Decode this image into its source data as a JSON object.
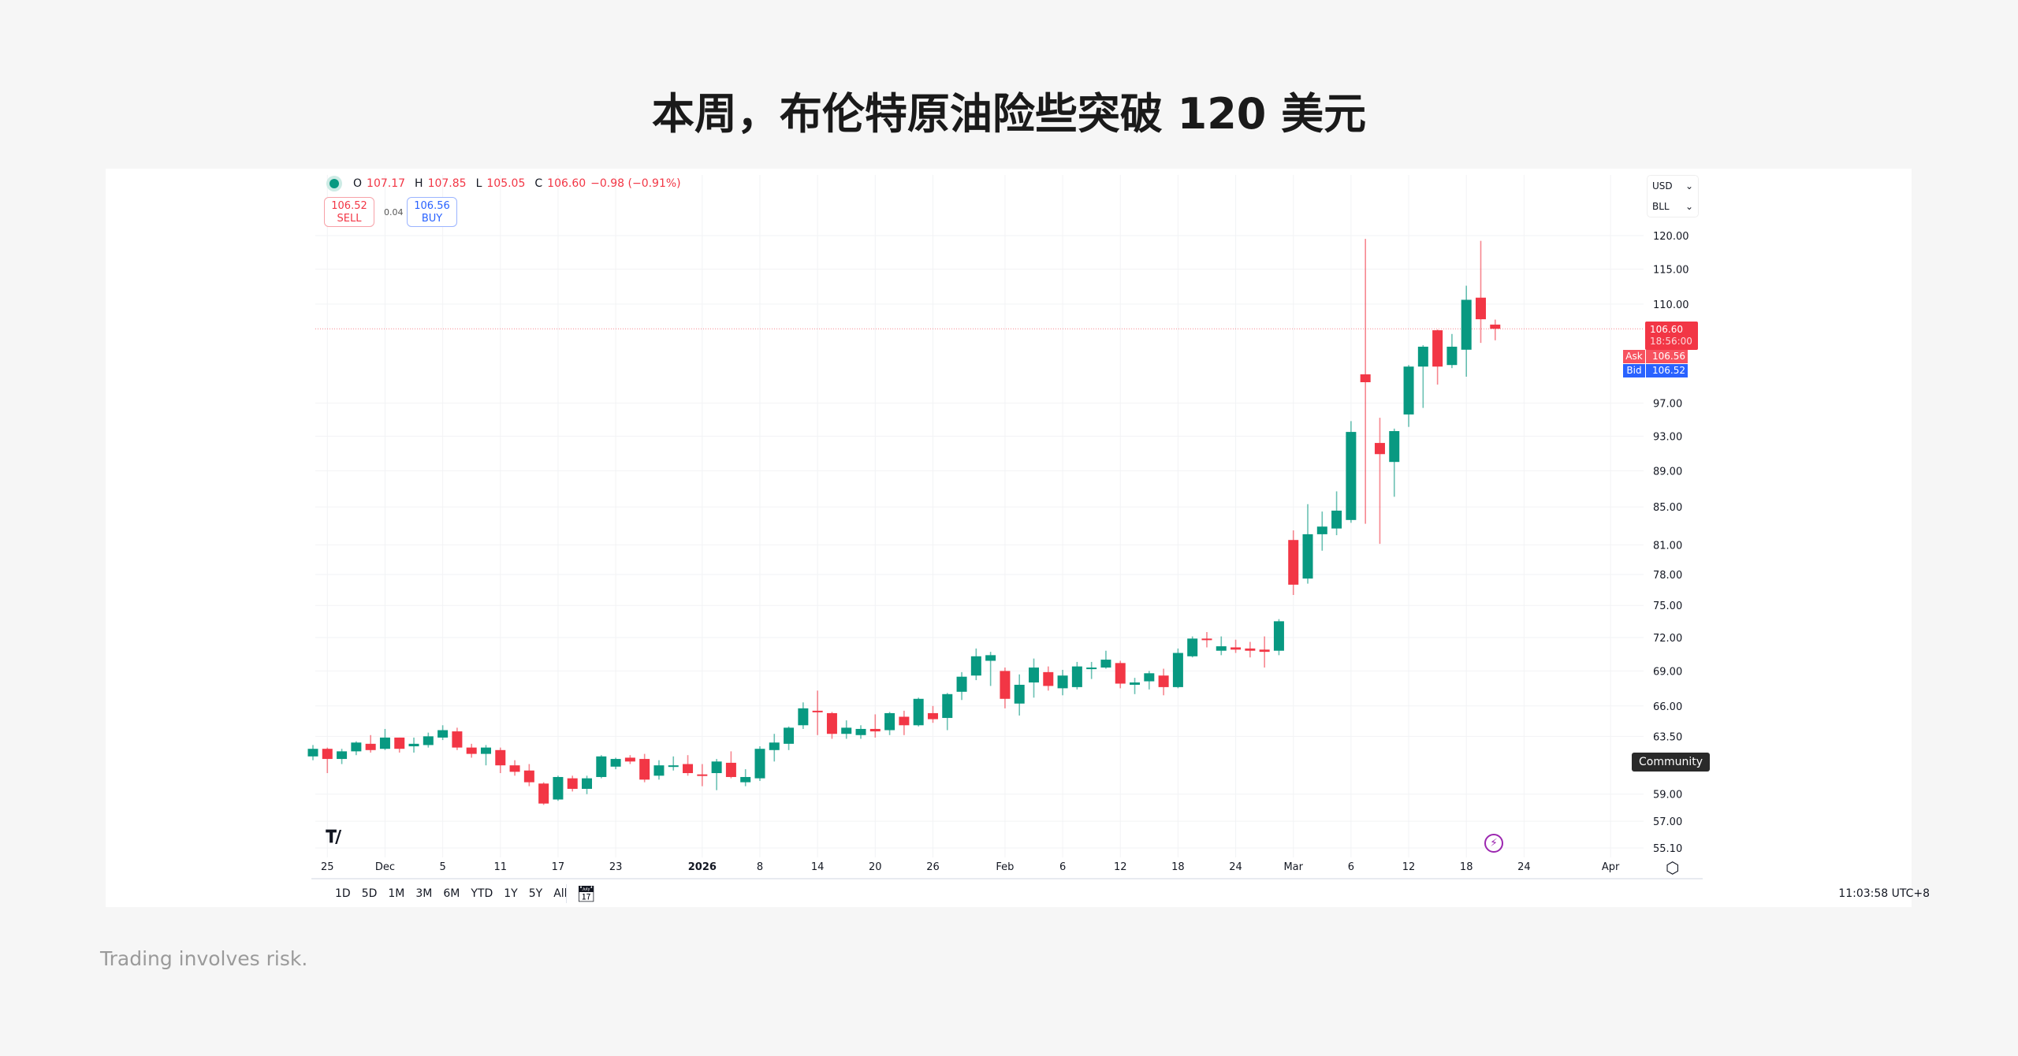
{
  "title": "本周，布伦特原油险些突破 120 美元",
  "footer": "Trading involves risk.",
  "legend": {
    "o_label": "O",
    "o": "107.17",
    "h_label": "H",
    "h": "107.85",
    "l_label": "L",
    "l": "105.05",
    "c_label": "C",
    "c": "106.60",
    "change": "−0.98 (−0.91%)"
  },
  "trade": {
    "sell_price": "106.52",
    "sell_label": "SELL",
    "spread": "0.04",
    "buy_price": "106.56",
    "buy_label": "BUY"
  },
  "units": {
    "currency": "USD",
    "unit": "BLL"
  },
  "price_tags": {
    "last": "106.60",
    "countdown": "18:56:00",
    "ask_label": "Ask",
    "ask": "106.56",
    "bid_label": "Bid",
    "bid": "106.52"
  },
  "tooltip": "Community",
  "timeframes": [
    "1D",
    "5D",
    "1M",
    "3M",
    "6M",
    "YTD",
    "1Y",
    "5Y",
    "All"
  ],
  "clock": "11:03:58 UTC+8",
  "colors": {
    "up": "#089981",
    "down": "#f23645",
    "bid": "#2962ff",
    "event": "#9c27b0"
  },
  "icons": [
    "tradingview-logo-icon",
    "lightning-event-icon",
    "settings-icon",
    "calendar-goto-icon",
    "chevron-down-icon"
  ],
  "chart_data": {
    "type": "candlestick",
    "y_scale": "log",
    "ylim": [
      55.1,
      120
    ],
    "grid": true,
    "y_ticks": [
      "120.00",
      "115.00",
      "110.00",
      "97.00",
      "93.00",
      "89.00",
      "85.00",
      "81.00",
      "78.00",
      "75.00",
      "72.00",
      "69.00",
      "66.00",
      "63.50",
      "59.00",
      "57.00",
      "55.10"
    ],
    "x_ticks": [
      {
        "label": "25",
        "date": "2025-11-25"
      },
      {
        "label": "Dec",
        "date": "2025-12-01"
      },
      {
        "label": "5",
        "date": "2025-12-05"
      },
      {
        "label": "11",
        "date": "2025-12-11"
      },
      {
        "label": "17",
        "date": "2025-12-17"
      },
      {
        "label": "23",
        "date": "2025-12-23"
      },
      {
        "label": "2026",
        "date": "2026-01-02"
      },
      {
        "label": "8",
        "date": "2026-01-08"
      },
      {
        "label": "14",
        "date": "2026-01-14"
      },
      {
        "label": "20",
        "date": "2026-01-20"
      },
      {
        "label": "26",
        "date": "2026-01-26"
      },
      {
        "label": "Feb",
        "date": "2026-02-02"
      },
      {
        "label": "6",
        "date": "2026-02-06"
      },
      {
        "label": "12",
        "date": "2026-02-12"
      },
      {
        "label": "18",
        "date": "2026-02-18"
      },
      {
        "label": "24",
        "date": "2026-02-24"
      },
      {
        "label": "Mar",
        "date": "2026-03-02"
      },
      {
        "label": "6",
        "date": "2026-03-06"
      },
      {
        "label": "12",
        "date": "2026-03-12"
      },
      {
        "label": "18",
        "date": "2026-03-18"
      },
      {
        "label": "24",
        "date": "2026-03-24"
      },
      {
        "label": "Apr",
        "date": "2026-04-01"
      }
    ],
    "last_price": 106.6,
    "candles": [
      {
        "d": "2025-11-24",
        "o": 61.9,
        "h": 62.8,
        "l": 61.6,
        "c": 62.5
      },
      {
        "d": "2025-11-25",
        "o": 62.5,
        "h": 62.6,
        "l": 60.6,
        "c": 61.7
      },
      {
        "d": "2025-11-26",
        "o": 61.7,
        "h": 62.5,
        "l": 61.3,
        "c": 62.3
      },
      {
        "d": "2025-11-27",
        "o": 62.3,
        "h": 63.1,
        "l": 62.0,
        "c": 63.0
      },
      {
        "d": "2025-11-28",
        "o": 62.9,
        "h": 63.6,
        "l": 62.2,
        "c": 62.4
      },
      {
        "d": "2025-12-01",
        "o": 62.5,
        "h": 64.1,
        "l": 62.4,
        "c": 63.4
      },
      {
        "d": "2025-12-02",
        "o": 63.4,
        "h": 63.4,
        "l": 62.2,
        "c": 62.5
      },
      {
        "d": "2025-12-03",
        "o": 62.7,
        "h": 63.4,
        "l": 62.2,
        "c": 62.9
      },
      {
        "d": "2025-12-04",
        "o": 62.8,
        "h": 63.8,
        "l": 62.6,
        "c": 63.5
      },
      {
        "d": "2025-12-05",
        "o": 63.4,
        "h": 64.4,
        "l": 63.2,
        "c": 64.0
      },
      {
        "d": "2025-12-08",
        "o": 63.9,
        "h": 64.2,
        "l": 62.4,
        "c": 62.6
      },
      {
        "d": "2025-12-09",
        "o": 62.6,
        "h": 62.9,
        "l": 61.8,
        "c": 62.1
      },
      {
        "d": "2025-12-10",
        "o": 62.1,
        "h": 62.8,
        "l": 61.2,
        "c": 62.6
      },
      {
        "d": "2025-12-11",
        "o": 62.4,
        "h": 62.6,
        "l": 60.6,
        "c": 61.2
      },
      {
        "d": "2025-12-12",
        "o": 61.2,
        "h": 61.6,
        "l": 60.4,
        "c": 60.7
      },
      {
        "d": "2025-12-15",
        "o": 60.8,
        "h": 61.3,
        "l": 59.6,
        "c": 59.9
      },
      {
        "d": "2025-12-16",
        "o": 59.8,
        "h": 59.9,
        "l": 58.2,
        "c": 58.3
      },
      {
        "d": "2025-12-17",
        "o": 58.6,
        "h": 60.4,
        "l": 58.5,
        "c": 60.3
      },
      {
        "d": "2025-12-18",
        "o": 60.2,
        "h": 60.4,
        "l": 59.2,
        "c": 59.4
      },
      {
        "d": "2025-12-19",
        "o": 59.4,
        "h": 60.4,
        "l": 59.0,
        "c": 60.2
      },
      {
        "d": "2025-12-22",
        "o": 60.3,
        "h": 62.0,
        "l": 60.2,
        "c": 61.9
      },
      {
        "d": "2025-12-23",
        "o": 61.1,
        "h": 61.8,
        "l": 60.9,
        "c": 61.7
      },
      {
        "d": "2025-12-24",
        "o": 61.8,
        "h": 62.0,
        "l": 61.3,
        "c": 61.5
      },
      {
        "d": "2025-12-26",
        "o": 61.7,
        "h": 62.1,
        "l": 59.9,
        "c": 60.1
      },
      {
        "d": "2025-12-29",
        "o": 60.4,
        "h": 61.6,
        "l": 60.1,
        "c": 61.2
      },
      {
        "d": "2025-12-30",
        "o": 61.1,
        "h": 61.9,
        "l": 60.8,
        "c": 61.2
      },
      {
        "d": "2025-12-31",
        "o": 61.3,
        "h": 62.0,
        "l": 60.4,
        "c": 60.6
      },
      {
        "d": "2026-01-02",
        "o": 60.5,
        "h": 61.3,
        "l": 59.6,
        "c": 60.4
      },
      {
        "d": "2026-01-05",
        "o": 60.6,
        "h": 61.7,
        "l": 59.3,
        "c": 61.5
      },
      {
        "d": "2026-01-06",
        "o": 61.4,
        "h": 62.3,
        "l": 60.2,
        "c": 60.3
      },
      {
        "d": "2026-01-07",
        "o": 59.9,
        "h": 60.9,
        "l": 59.6,
        "c": 60.3
      },
      {
        "d": "2026-01-08",
        "o": 60.2,
        "h": 62.7,
        "l": 60.0,
        "c": 62.5
      },
      {
        "d": "2026-01-09",
        "o": 62.4,
        "h": 63.7,
        "l": 61.5,
        "c": 63.0
      },
      {
        "d": "2026-01-12",
        "o": 62.9,
        "h": 64.3,
        "l": 62.4,
        "c": 64.2
      },
      {
        "d": "2026-01-13",
        "o": 64.4,
        "h": 66.3,
        "l": 64.1,
        "c": 65.8
      },
      {
        "d": "2026-01-14",
        "o": 65.6,
        "h": 67.3,
        "l": 63.6,
        "c": 65.5
      },
      {
        "d": "2026-01-15",
        "o": 65.4,
        "h": 65.5,
        "l": 63.3,
        "c": 63.7
      },
      {
        "d": "2026-01-16",
        "o": 63.7,
        "h": 64.8,
        "l": 63.3,
        "c": 64.2
      },
      {
        "d": "2026-01-19",
        "o": 63.6,
        "h": 64.4,
        "l": 63.3,
        "c": 64.1
      },
      {
        "d": "2026-01-20",
        "o": 64.1,
        "h": 65.3,
        "l": 63.4,
        "c": 63.9
      },
      {
        "d": "2026-01-21",
        "o": 64.0,
        "h": 65.5,
        "l": 63.6,
        "c": 65.4
      },
      {
        "d": "2026-01-22",
        "o": 65.1,
        "h": 65.6,
        "l": 63.6,
        "c": 64.4
      },
      {
        "d": "2026-01-23",
        "o": 64.4,
        "h": 66.7,
        "l": 64.3,
        "c": 66.6
      },
      {
        "d": "2026-01-26",
        "o": 65.4,
        "h": 66.0,
        "l": 64.6,
        "c": 64.9
      },
      {
        "d": "2026-01-27",
        "o": 65.0,
        "h": 67.1,
        "l": 64.0,
        "c": 67.0
      },
      {
        "d": "2026-01-28",
        "o": 67.2,
        "h": 68.9,
        "l": 66.5,
        "c": 68.5
      },
      {
        "d": "2026-01-29",
        "o": 68.6,
        "h": 71.0,
        "l": 68.2,
        "c": 70.3
      },
      {
        "d": "2026-01-30",
        "o": 69.9,
        "h": 70.7,
        "l": 67.7,
        "c": 70.4
      },
      {
        "d": "2026-02-02",
        "o": 69.0,
        "h": 69.3,
        "l": 65.8,
        "c": 66.6
      },
      {
        "d": "2026-02-03",
        "o": 66.2,
        "h": 68.7,
        "l": 65.2,
        "c": 67.8
      },
      {
        "d": "2026-02-04",
        "o": 68.0,
        "h": 70.1,
        "l": 66.7,
        "c": 69.3
      },
      {
        "d": "2026-02-05",
        "o": 68.9,
        "h": 69.4,
        "l": 67.3,
        "c": 67.7
      },
      {
        "d": "2026-02-06",
        "o": 67.5,
        "h": 69.1,
        "l": 66.9,
        "c": 68.6
      },
      {
        "d": "2026-02-09",
        "o": 67.6,
        "h": 69.8,
        "l": 67.4,
        "c": 69.4
      },
      {
        "d": "2026-02-10",
        "o": 69.2,
        "h": 69.8,
        "l": 68.3,
        "c": 69.3
      },
      {
        "d": "2026-02-11",
        "o": 69.3,
        "h": 70.8,
        "l": 69.2,
        "c": 70.0
      },
      {
        "d": "2026-02-12",
        "o": 69.7,
        "h": 69.9,
        "l": 67.5,
        "c": 67.9
      },
      {
        "d": "2026-02-13",
        "o": 67.8,
        "h": 68.4,
        "l": 67.0,
        "c": 68.0
      },
      {
        "d": "2026-02-16",
        "o": 68.1,
        "h": 69.0,
        "l": 67.4,
        "c": 68.8
      },
      {
        "d": "2026-02-17",
        "o": 68.6,
        "h": 69.2,
        "l": 66.9,
        "c": 67.6
      },
      {
        "d": "2026-02-18",
        "o": 67.6,
        "h": 71.0,
        "l": 67.5,
        "c": 70.6
      },
      {
        "d": "2026-02-19",
        "o": 70.3,
        "h": 72.1,
        "l": 70.2,
        "c": 71.9
      },
      {
        "d": "2026-02-20",
        "o": 71.9,
        "h": 72.5,
        "l": 71.1,
        "c": 71.8
      },
      {
        "d": "2026-02-23",
        "o": 70.8,
        "h": 72.1,
        "l": 70.4,
        "c": 71.2
      },
      {
        "d": "2026-02-24",
        "o": 71.1,
        "h": 71.8,
        "l": 70.6,
        "c": 70.9
      },
      {
        "d": "2026-02-25",
        "o": 71.0,
        "h": 71.6,
        "l": 70.2,
        "c": 70.8
      },
      {
        "d": "2026-02-26",
        "o": 70.9,
        "h": 72.1,
        "l": 69.3,
        "c": 70.7
      },
      {
        "d": "2026-02-27",
        "o": 70.8,
        "h": 73.7,
        "l": 70.4,
        "c": 73.5
      },
      {
        "d": "2026-03-02",
        "o": 81.5,
        "h": 82.5,
        "l": 76.0,
        "c": 77.0
      },
      {
        "d": "2026-03-03",
        "o": 77.6,
        "h": 85.3,
        "l": 77.1,
        "c": 82.1
      },
      {
        "d": "2026-03-04",
        "o": 82.1,
        "h": 84.5,
        "l": 80.4,
        "c": 82.9
      },
      {
        "d": "2026-03-05",
        "o": 82.7,
        "h": 86.7,
        "l": 82.0,
        "c": 84.6
      },
      {
        "d": "2026-03-06",
        "o": 83.6,
        "h": 94.8,
        "l": 83.3,
        "c": 93.5
      },
      {
        "d": "2026-03-09",
        "o": 100.6,
        "h": 119.5,
        "l": 83.2,
        "c": 99.6
      },
      {
        "d": "2026-03-10",
        "o": 92.2,
        "h": 95.2,
        "l": 81.1,
        "c": 90.9
      },
      {
        "d": "2026-03-11",
        "o": 90.0,
        "h": 93.9,
        "l": 86.1,
        "c": 93.6
      },
      {
        "d": "2026-03-12",
        "o": 95.6,
        "h": 101.8,
        "l": 94.1,
        "c": 101.6
      },
      {
        "d": "2026-03-13",
        "o": 101.6,
        "h": 104.4,
        "l": 96.4,
        "c": 104.2
      },
      {
        "d": "2026-03-16",
        "o": 106.4,
        "h": 106.5,
        "l": 99.3,
        "c": 101.6
      },
      {
        "d": "2026-03-17",
        "o": 101.8,
        "h": 105.9,
        "l": 101.4,
        "c": 104.2
      },
      {
        "d": "2026-03-18",
        "o": 103.8,
        "h": 112.6,
        "l": 100.3,
        "c": 110.6
      },
      {
        "d": "2026-03-19",
        "o": 110.9,
        "h": 119.2,
        "l": 104.7,
        "c": 107.9
      },
      {
        "d": "2026-03-20",
        "o": 107.17,
        "h": 107.85,
        "l": 105.05,
        "c": 106.6
      }
    ]
  }
}
